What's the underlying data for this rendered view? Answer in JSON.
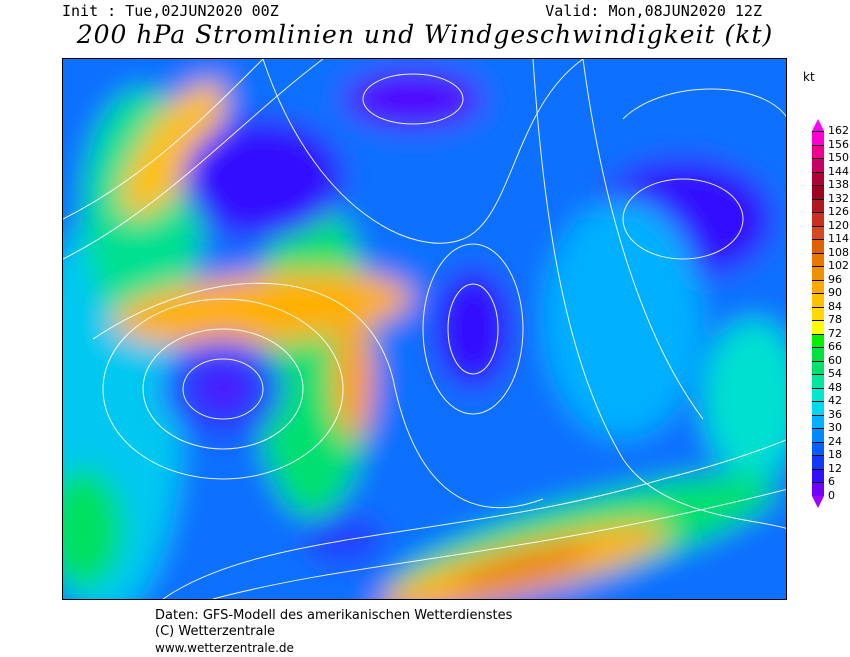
{
  "header": {
    "init": "Init : Tue,02JUN2020 00Z",
    "valid": "Valid: Mon,08JUN2020 12Z",
    "title": "200 hPa Stromlinien und Windgeschwindigkeit (kt)"
  },
  "legend": {
    "unit": "kt",
    "labels": [
      "162",
      "156",
      "150",
      "144",
      "138",
      "132",
      "126",
      "120",
      "114",
      "108",
      "102",
      "96",
      "90",
      "84",
      "78",
      "72",
      "66",
      "60",
      "54",
      "48",
      "42",
      "36",
      "30",
      "24",
      "18",
      "12",
      "6",
      "0"
    ],
    "colors": [
      "#ff00d0",
      "#f00090",
      "#c80060",
      "#b00038",
      "#a00020",
      "#b01820",
      "#c83020",
      "#d84820",
      "#e06000",
      "#e87800",
      "#f09000",
      "#ffa800",
      "#ffc000",
      "#ffd800",
      "#ffff00",
      "#00f000",
      "#00e040",
      "#00e070",
      "#00e8a0",
      "#00e8d0",
      "#00d8f0",
      "#00b0ff",
      "#0088ff",
      "#0060ff",
      "#1038ff",
      "#3010ff",
      "#7000ff"
    ],
    "arrow_top_color": "#ff00ff",
    "arrow_bottom_color": "#a000ff"
  },
  "footer": {
    "line1": "Daten: GFS-Modell des amerikanischen Wetterdienstes",
    "line2": "(C) Wetterzentrale",
    "line3": "www.wetterzentrale.de"
  }
}
